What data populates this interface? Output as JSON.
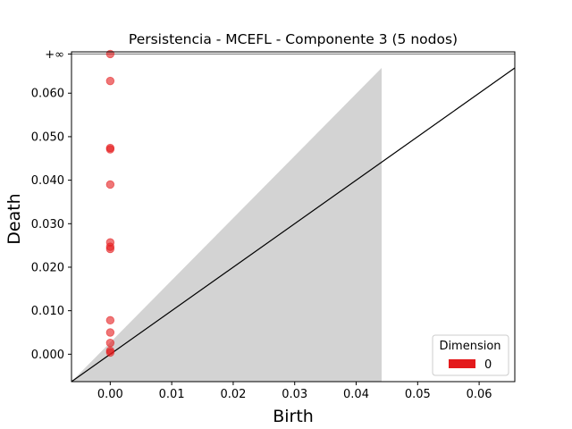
{
  "chart_data": {
    "type": "scatter",
    "title": "Persistencia - MCEFL - Componente 3 (5 nodos)",
    "xlabel": "Birth",
    "ylabel": "Death",
    "xlim": [
      -0.0063,
      0.0658
    ],
    "ylim": [
      -0.0063,
      0.0695
    ],
    "x_ticks": [
      0.0,
      0.01,
      0.02,
      0.03,
      0.04,
      0.05,
      0.06
    ],
    "x_tick_labels": [
      "0.00",
      "0.01",
      "0.02",
      "0.03",
      "0.04",
      "0.05",
      "0.06"
    ],
    "y_ticks": [
      0.0,
      0.01,
      0.02,
      0.03,
      0.04,
      0.05,
      0.06
    ],
    "y_tick_labels": [
      "0.000",
      "0.010",
      "0.020",
      "0.030",
      "0.040",
      "0.050",
      "0.060"
    ],
    "infinity_label": "+∞",
    "infinity_value": 0.069,
    "grid": false,
    "diagonal": true,
    "series": [
      {
        "name": "0",
        "color": "#e41a1c",
        "points": [
          {
            "birth": 0.0,
            "death": "inf"
          },
          {
            "birth": 0.0,
            "death": 0.0628
          },
          {
            "birth": 0.0,
            "death": 0.0474
          },
          {
            "birth": 0.0,
            "death": 0.0471
          },
          {
            "birth": 0.0,
            "death": 0.039
          },
          {
            "birth": 0.0,
            "death": 0.0257
          },
          {
            "birth": 0.0,
            "death": 0.0247
          },
          {
            "birth": 0.0,
            "death": 0.0242
          },
          {
            "birth": 0.0,
            "death": 0.0078
          },
          {
            "birth": 0.0,
            "death": 0.005
          },
          {
            "birth": 0.0,
            "death": 0.0026
          },
          {
            "birth": 0.0,
            "death": 0.0008
          },
          {
            "birth": 0.0,
            "death": 0.0004
          }
        ]
      }
    ],
    "legend": {
      "title": "Dimension",
      "placement": "lower-right",
      "entries": [
        {
          "label": "0",
          "color": "#e41a1c"
        }
      ]
    },
    "fill_color": "#d3d3d3",
    "infinity_line_color": "#808080"
  }
}
